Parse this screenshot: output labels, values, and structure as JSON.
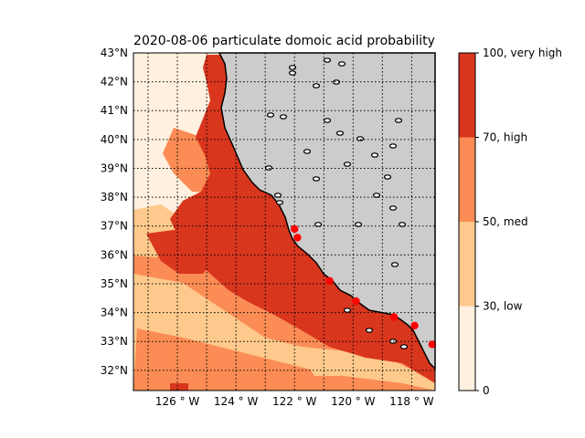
{
  "map": {
    "title": "2020-08-06 particulate domoic acid probability",
    "lat_ticks": [
      "43°N",
      "42°N",
      "41°N",
      "40°N",
      "39°N",
      "38°N",
      "37°N",
      "36°N",
      "35°N",
      "34°N",
      "33°N",
      "32°N"
    ],
    "lon_ticks": [
      "126$^\\circ$W",
      "124$^\\circ$W",
      "122$^\\circ$W",
      "120$^\\circ$W",
      "118$^\\circ$W"
    ],
    "lon_tick_display": [
      "126 ° W",
      "124 ° W",
      "122 ° W",
      "120 ° W",
      "118 ° W"
    ],
    "extent": {
      "lon": [
        -127.5,
        -117.2
      ],
      "lat": [
        31.3,
        43.0
      ]
    },
    "grid": true,
    "land_color": "#cccccc",
    "stations": [
      {
        "lon": -122.0,
        "lat": 36.9
      },
      {
        "lon": -121.9,
        "lat": 36.6
      },
      {
        "lon": -120.8,
        "lat": 35.1
      },
      {
        "lon": -119.9,
        "lat": 34.4
      },
      {
        "lon": -118.6,
        "lat": 33.85
      },
      {
        "lon": -117.9,
        "lat": 33.55
      },
      {
        "lon": -117.3,
        "lat": 32.9
      }
    ],
    "station_color": "#ff0000"
  },
  "colorbar": {
    "levels": [
      {
        "label": "0",
        "color": "#fff0df"
      },
      {
        "label": "30, low",
        "color": "#fdc98c"
      },
      {
        "label": "50, med",
        "color": "#fb8c55"
      },
      {
        "label": "70, high",
        "color": "#d9361e"
      },
      {
        "label": "100, very high",
        "color": "#d9361e"
      }
    ],
    "bands": [
      "#fff0df",
      "#fdc98c",
      "#fb8c55",
      "#d9361e"
    ]
  }
}
